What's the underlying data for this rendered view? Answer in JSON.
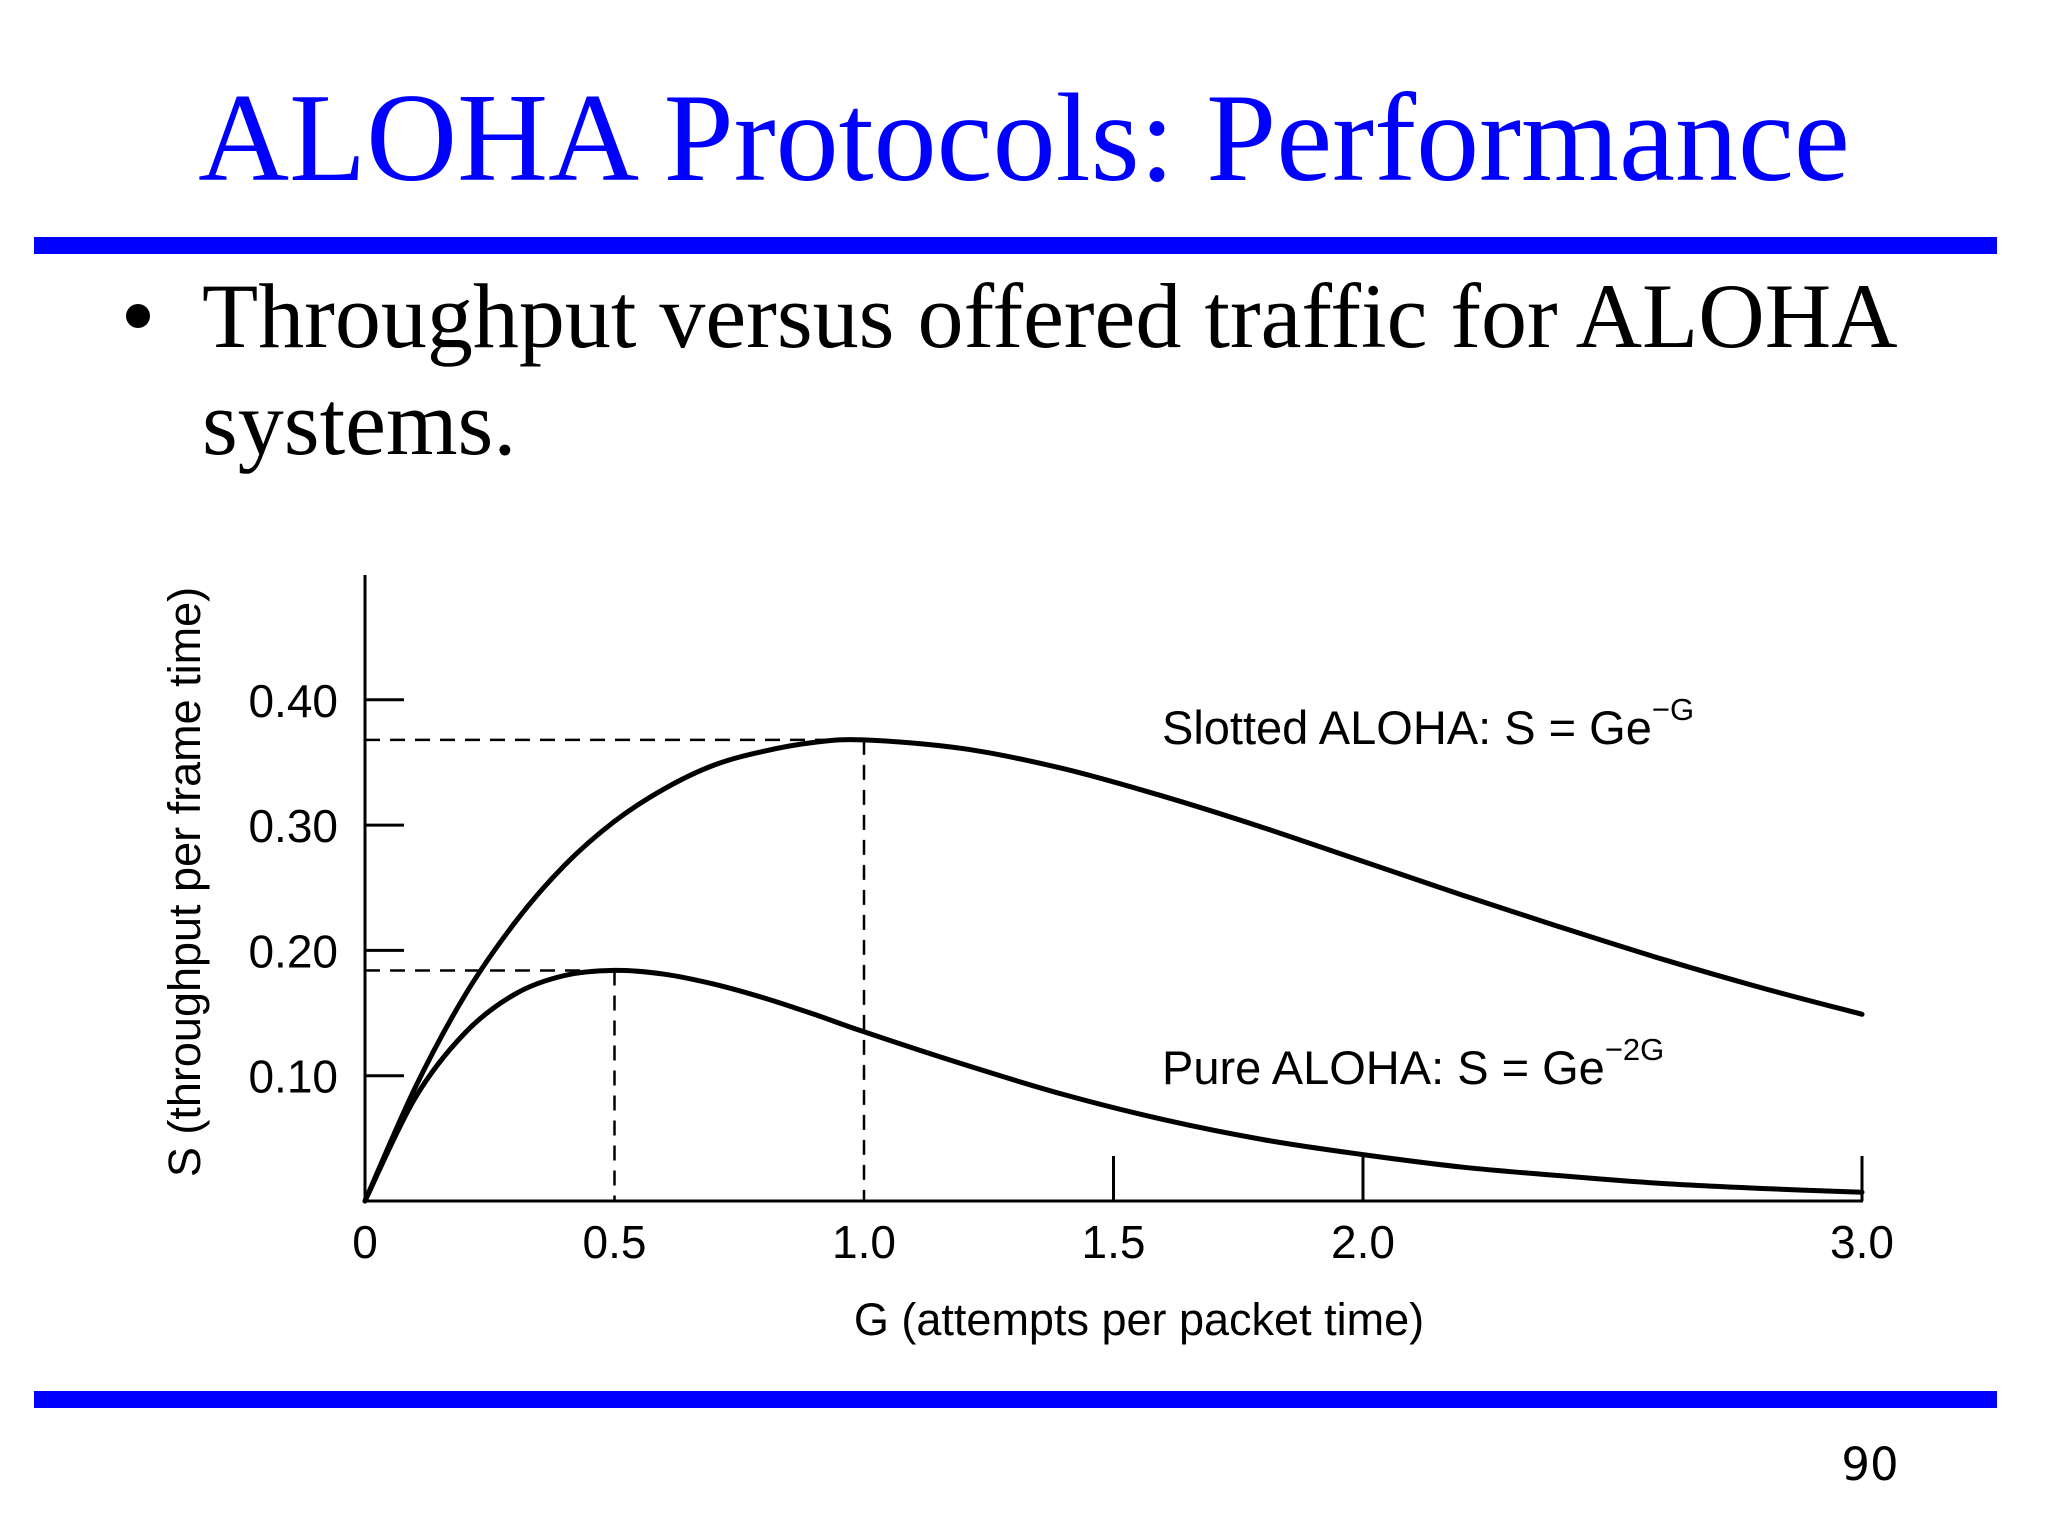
{
  "slide": {
    "title": "ALOHA Protocols: Performance",
    "bullet": "Throughput versus offered traffic for ALOHA systems.",
    "page_number": "90",
    "colors": {
      "title": "#0000FF",
      "rule": "#0000FF",
      "text": "#000000",
      "background": "#FFFFFF"
    }
  },
  "chart_data": {
    "type": "line",
    "title": "",
    "xlabel": "G (attempts per packet time)",
    "ylabel": "S (throughput per frame time)",
    "xlim": [
      0,
      3.0
    ],
    "ylim": [
      0,
      0.45
    ],
    "x_ticks": [
      0,
      0.5,
      1.0,
      1.5,
      2.0,
      3.0
    ],
    "x_tick_labels": [
      "0",
      "0.5",
      "1.0",
      "1.5",
      "2.0",
      "3.0"
    ],
    "y_ticks": [
      0.1,
      0.2,
      0.3,
      0.4
    ],
    "y_tick_labels": [
      "0.10",
      "0.20",
      "0.30",
      "0.40"
    ],
    "grid": false,
    "x": [
      0,
      0.1,
      0.2,
      0.3,
      0.4,
      0.5,
      0.6,
      0.7,
      0.8,
      0.9,
      1.0,
      1.2,
      1.4,
      1.6,
      1.8,
      2.0,
      2.2,
      2.4,
      2.6,
      2.8,
      3.0
    ],
    "series": [
      {
        "name": "Slotted ALOHA",
        "label": "Slotted ALOHA: S = Ge",
        "exponent": "−G",
        "formula": "S = Ge^-G",
        "values": [
          0,
          0.09,
          0.164,
          0.222,
          0.268,
          0.303,
          0.329,
          0.348,
          0.359,
          0.366,
          0.368,
          0.361,
          0.345,
          0.323,
          0.298,
          0.271,
          0.244,
          0.218,
          0.193,
          0.17,
          0.149
        ],
        "peak": {
          "x": 1.0,
          "y": 0.368
        }
      },
      {
        "name": "Pure ALOHA",
        "label": "Pure ALOHA: S = Ge",
        "exponent": "−2G",
        "formula": "S = Ge^-2G",
        "values": [
          0,
          0.082,
          0.134,
          0.165,
          0.18,
          0.184,
          0.181,
          0.173,
          0.162,
          0.149,
          0.135,
          0.109,
          0.085,
          0.065,
          0.049,
          0.037,
          0.027,
          0.02,
          0.014,
          0.01,
          0.007
        ],
        "peak": {
          "x": 0.5,
          "y": 0.184
        }
      }
    ],
    "annotations": [
      {
        "type": "dashed-guide",
        "x": 1.0,
        "y": 0.368
      },
      {
        "type": "dashed-guide",
        "x": 0.5,
        "y": 0.184
      }
    ]
  }
}
